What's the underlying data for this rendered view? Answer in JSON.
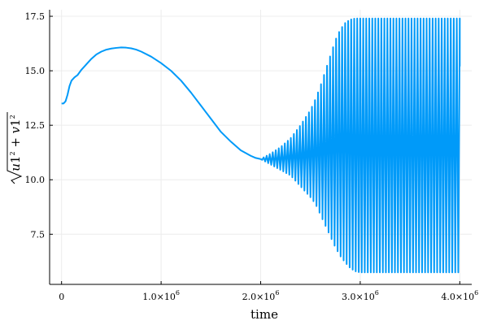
{
  "chart_data": {
    "type": "line",
    "xlabel": "time",
    "ylabel": "√(u1² + v1²)",
    "xlim": [
      -120000,
      4120000
    ],
    "ylim": [
      5.2,
      17.8
    ],
    "grid": true,
    "legend": "none",
    "x_ticks": [
      {
        "value": 0,
        "mantissa": "0",
        "exponent": ""
      },
      {
        "value": 1000000,
        "mantissa": "1.0×10",
        "exponent": "6"
      },
      {
        "value": 2000000,
        "mantissa": "2.0×10",
        "exponent": "6"
      },
      {
        "value": 3000000,
        "mantissa": "3.0×10",
        "exponent": "6"
      },
      {
        "value": 4000000,
        "mantissa": "4.0×10",
        "exponent": "6"
      }
    ],
    "y_ticks": [
      {
        "value": 7.5,
        "label": "7.5"
      },
      {
        "value": 10.0,
        "label": "10.0"
      },
      {
        "value": 12.5,
        "label": "12.5"
      },
      {
        "value": 15.0,
        "label": "15.0"
      },
      {
        "value": 17.5,
        "label": "17.5"
      }
    ],
    "series": [
      {
        "color": "#009af9",
        "segments": [
          {
            "style": "smooth",
            "x": [
              0,
              20000,
              40000,
              60000,
              80000,
              100000,
              130000,
              160000,
              200000,
              250000,
              300000,
              350000,
              400000,
              450000,
              500000,
              550000,
              600000,
              650000,
              700000,
              750000,
              800000,
              900000,
              1000000,
              1100000,
              1200000,
              1300000,
              1400000,
              1500000,
              1600000,
              1700000,
              1800000,
              1900000,
              1950000,
              2000000
            ],
            "y": [
              13.5,
              13.5,
              13.6,
              13.9,
              14.3,
              14.55,
              14.7,
              14.8,
              15.05,
              15.3,
              15.55,
              15.75,
              15.88,
              15.97,
              16.02,
              16.05,
              16.07,
              16.06,
              16.03,
              15.97,
              15.88,
              15.65,
              15.35,
              15.0,
              14.55,
              14.0,
              13.4,
              12.8,
              12.2,
              11.75,
              11.35,
              11.1,
              11.0,
              10.95
            ]
          },
          {
            "style": "oscillation",
            "cycles": 66,
            "x_start": 2000000,
            "x_end": 4000000,
            "envelope_x": [
              2000000,
              2100000,
              2200000,
              2300000,
              2400000,
              2500000,
              2550000,
              2600000,
              2650000,
              2700000,
              2750000,
              2800000,
              2850000,
              2900000,
              2950000,
              3000000,
              4000000
            ],
            "upper": [
              10.95,
              11.2,
              11.5,
              11.9,
              12.5,
              13.2,
              13.7,
              14.3,
              15.0,
              15.7,
              16.4,
              16.9,
              17.2,
              17.35,
              17.4,
              17.4,
              17.4
            ],
            "lower": [
              10.95,
              10.7,
              10.45,
              10.2,
              9.7,
              9.2,
              8.9,
              8.4,
              7.9,
              7.4,
              6.9,
              6.5,
              6.2,
              5.95,
              5.8,
              5.75,
              5.75
            ],
            "end_value": 15.2
          }
        ]
      }
    ]
  }
}
